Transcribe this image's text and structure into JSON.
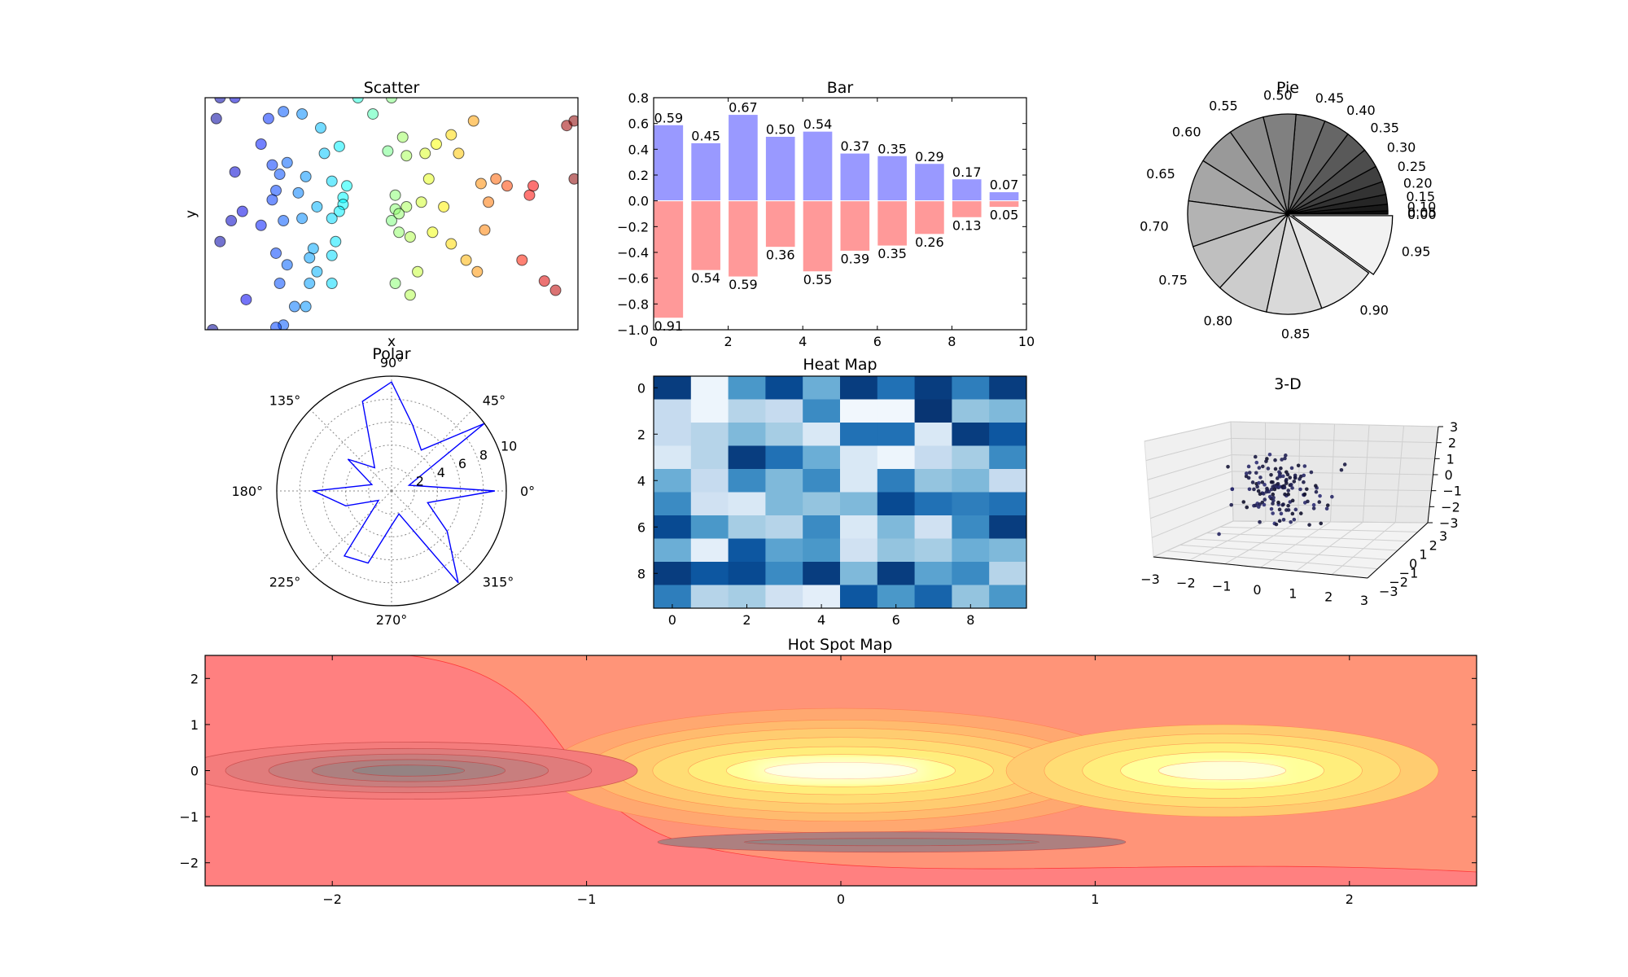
{
  "chart_data": [
    {
      "type": "scatter",
      "title": "Scatter",
      "xlabel": "x",
      "ylabel": "y",
      "xlim": [
        0,
        1
      ],
      "ylim": [
        0,
        1
      ],
      "colormap": "jet",
      "points": [
        [
          0.04,
          1.0
        ],
        [
          0.08,
          1.0
        ],
        [
          0.21,
          0.94
        ],
        [
          0.26,
          0.93
        ],
        [
          0.03,
          0.91
        ],
        [
          0.31,
          0.87
        ],
        [
          0.36,
          0.79
        ],
        [
          0.17,
          0.91
        ],
        [
          0.15,
          0.8
        ],
        [
          0.08,
          0.68
        ],
        [
          0.18,
          0.71
        ],
        [
          0.22,
          0.72
        ],
        [
          0.2,
          0.67
        ],
        [
          0.27,
          0.66
        ],
        [
          0.34,
          0.64
        ],
        [
          0.37,
          0.57
        ],
        [
          0.19,
          0.6
        ],
        [
          0.25,
          0.59
        ],
        [
          0.18,
          0.56
        ],
        [
          0.3,
          0.53
        ],
        [
          0.37,
          0.54
        ],
        [
          0.36,
          0.51
        ],
        [
          0.32,
          0.76
        ],
        [
          0.1,
          0.51
        ],
        [
          0.07,
          0.47
        ],
        [
          0.21,
          0.47
        ],
        [
          0.26,
          0.48
        ],
        [
          0.15,
          0.45
        ],
        [
          0.04,
          0.38
        ],
        [
          0.19,
          0.33
        ],
        [
          0.22,
          0.28
        ],
        [
          0.34,
          0.48
        ],
        [
          0.35,
          0.38
        ],
        [
          0.34,
          0.32
        ],
        [
          0.29,
          0.35
        ],
        [
          0.28,
          0.31
        ],
        [
          0.11,
          0.13
        ],
        [
          0.28,
          0.2
        ],
        [
          0.3,
          0.25
        ],
        [
          0.2,
          0.2
        ],
        [
          0.27,
          0.1
        ],
        [
          0.24,
          0.1
        ],
        [
          0.21,
          0.02
        ],
        [
          0.34,
          0.2
        ],
        [
          0.02,
          0.0
        ],
        [
          0.19,
          0.01
        ],
        [
          0.38,
          0.62
        ],
        [
          0.5,
          1.0
        ],
        [
          0.41,
          1.0
        ],
        [
          0.45,
          0.93
        ],
        [
          0.49,
          0.77
        ],
        [
          0.53,
          0.83
        ],
        [
          0.54,
          0.75
        ],
        [
          0.51,
          0.58
        ],
        [
          0.54,
          0.53
        ],
        [
          0.51,
          0.52
        ],
        [
          0.5,
          0.47
        ],
        [
          0.6,
          0.65
        ],
        [
          0.58,
          0.55
        ],
        [
          0.55,
          0.4
        ],
        [
          0.52,
          0.42
        ],
        [
          0.52,
          0.5
        ],
        [
          0.59,
          0.76
        ],
        [
          0.62,
          0.8
        ],
        [
          0.66,
          0.84
        ],
        [
          0.68,
          0.76
        ],
        [
          0.72,
          0.9
        ],
        [
          0.74,
          0.63
        ],
        [
          0.81,
          0.62
        ],
        [
          0.87,
          0.58
        ],
        [
          0.97,
          0.88
        ],
        [
          0.88,
          0.62
        ],
        [
          0.78,
          0.65
        ],
        [
          0.76,
          0.55
        ],
        [
          0.75,
          0.43
        ],
        [
          0.66,
          0.37
        ],
        [
          0.64,
          0.53
        ],
        [
          0.61,
          0.42
        ],
        [
          0.57,
          0.25
        ],
        [
          0.51,
          0.2
        ],
        [
          0.55,
          0.15
        ],
        [
          0.73,
          0.25
        ],
        [
          0.7,
          0.3
        ],
        [
          0.85,
          0.3
        ],
        [
          0.91,
          0.21
        ],
        [
          0.94,
          0.17
        ],
        [
          0.99,
          0.65
        ],
        [
          0.99,
          0.9
        ]
      ]
    },
    {
      "type": "bar",
      "title": "Bar",
      "xlim": [
        0,
        10
      ],
      "ylim": [
        -1.0,
        0.8
      ],
      "xticks": [
        "0",
        "2",
        "4",
        "6",
        "8",
        "10"
      ],
      "yticks": [
        "−1.0",
        "−0.8",
        "−0.6",
        "−0.4",
        "−0.2",
        "0.0",
        "0.2",
        "0.4",
        "0.6",
        "0.8"
      ],
      "categories": [
        0,
        1,
        2,
        3,
        4,
        5,
        6,
        7,
        8,
        9
      ],
      "series": [
        {
          "values": [
            0.59,
            0.45,
            0.67,
            0.5,
            0.54,
            0.37,
            0.35,
            0.29,
            0.17,
            0.07
          ],
          "labels": [
            "0.59",
            "0.45",
            "0.67",
            "0.50",
            "0.54",
            "0.37",
            "0.35",
            "0.29",
            "0.17",
            "0.07"
          ],
          "color": "#9999ff"
        },
        {
          "values": [
            -0.91,
            -0.54,
            -0.59,
            -0.36,
            -0.55,
            -0.39,
            -0.35,
            -0.26,
            -0.13,
            -0.05
          ],
          "labels": [
            "0.91",
            "0.54",
            "0.59",
            "0.36",
            "0.55",
            "0.39",
            "0.35",
            "0.26",
            "0.13",
            "0.05"
          ],
          "color": "#ff9999"
        }
      ]
    },
    {
      "type": "pie",
      "title": "Pie",
      "slices": [
        0.0,
        0.05,
        0.1,
        0.15,
        0.2,
        0.25,
        0.3,
        0.35,
        0.4,
        0.45,
        0.5,
        0.55,
        0.6,
        0.65,
        0.7,
        0.75,
        0.8,
        0.85,
        0.9,
        0.95
      ],
      "labels": [
        "0.00",
        "0.05",
        "0.10",
        "0.15",
        "0.20",
        "0.25",
        "0.30",
        "0.35",
        "0.40",
        "0.45",
        "0.50",
        "0.55",
        "0.60",
        "0.65",
        "0.70",
        "0.75",
        "0.80",
        "0.85",
        "0.90",
        "0.95"
      ],
      "colormap": "gray"
    },
    {
      "type": "line",
      "title": "Polar",
      "projection": "polar",
      "angle_ticks": [
        "0°",
        "45°",
        "90°",
        "135°",
        "180°",
        "225°",
        "270°",
        "315°"
      ],
      "radial_ticks": [
        "2",
        "4",
        "6",
        "8",
        "10"
      ],
      "rlim": [
        0,
        10
      ],
      "theta_deg": [
        0,
        18,
        36,
        54,
        72,
        90,
        108,
        126,
        144,
        162,
        180,
        198,
        216,
        234,
        252,
        270,
        288,
        306,
        324,
        342,
        360
      ],
      "r": [
        9.0,
        1.6,
        10.0,
        4.4,
        6.0,
        9.5,
        8.2,
        2.5,
        4.7,
        1.8,
        6.8,
        4.2,
        1.4,
        7.0,
        6.6,
        3.0,
        2.1,
        9.9,
        6.0,
        3.3,
        9.0
      ],
      "color": "#0000ff"
    },
    {
      "type": "heatmap",
      "title": "Heat Map",
      "xticks": [
        "0",
        "2",
        "4",
        "6",
        "8"
      ],
      "yticks": [
        "0",
        "2",
        "4",
        "6",
        "8"
      ],
      "colormap": "Blues",
      "values": [
        [
          0.95,
          0.05,
          0.6,
          0.9,
          0.5,
          0.95,
          0.75,
          0.95,
          0.7,
          0.95
        ],
        [
          0.25,
          0.05,
          0.3,
          0.25,
          0.65,
          0.03,
          0.03,
          0.98,
          0.4,
          0.45
        ],
        [
          0.25,
          0.3,
          0.45,
          0.35,
          0.15,
          0.75,
          0.75,
          0.15,
          0.95,
          0.85
        ],
        [
          0.15,
          0.3,
          0.95,
          0.75,
          0.5,
          0.15,
          0.05,
          0.25,
          0.35,
          0.65
        ],
        [
          0.5,
          0.25,
          0.65,
          0.45,
          0.65,
          0.15,
          0.7,
          0.4,
          0.45,
          0.25
        ],
        [
          0.65,
          0.2,
          0.15,
          0.45,
          0.4,
          0.45,
          0.9,
          0.75,
          0.7,
          0.75
        ],
        [
          0.9,
          0.6,
          0.35,
          0.3,
          0.65,
          0.15,
          0.45,
          0.2,
          0.65,
          0.95
        ],
        [
          0.5,
          0.1,
          0.85,
          0.55,
          0.6,
          0.2,
          0.4,
          0.35,
          0.5,
          0.45
        ],
        [
          0.95,
          0.85,
          0.9,
          0.65,
          0.95,
          0.45,
          0.95,
          0.55,
          0.65,
          0.3
        ],
        [
          0.7,
          0.3,
          0.35,
          0.2,
          0.1,
          0.85,
          0.6,
          0.8,
          0.4,
          0.6
        ]
      ]
    },
    {
      "type": "scatter",
      "title": "3-D",
      "projection": "3d",
      "xticks": [
        "−3",
        "−2",
        "−1",
        "0",
        "1",
        "2",
        "3"
      ],
      "yticks": [
        "−3",
        "−2",
        "−1",
        "0",
        "1",
        "2",
        "3"
      ],
      "zticks": [
        "−3",
        "−2",
        "−1",
        "0",
        "1",
        "2",
        "3"
      ],
      "xlim": [
        -3,
        3
      ],
      "ylim": [
        -3,
        3
      ],
      "zlim": [
        -3,
        3
      ],
      "color": "#1a1a4d",
      "point_count": 150
    },
    {
      "type": "heatmap",
      "title": "Hot Spot Map",
      "style": "filled-contour",
      "xlim": [
        -2.5,
        2.5
      ],
      "ylim": [
        -2.5,
        2.5
      ],
      "xticks": [
        "−2",
        "−1",
        "0",
        "1",
        "2"
      ],
      "yticks": [
        "−2",
        "−1",
        "0",
        "1",
        "2"
      ],
      "colormap": "hot",
      "hot_spots": [
        {
          "x": 0.0,
          "y": 0.0,
          "sign": "high"
        },
        {
          "x": 1.5,
          "y": 0.0,
          "sign": "high"
        },
        {
          "x": -1.7,
          "y": 0.0,
          "sign": "low"
        },
        {
          "x": 0.2,
          "y": -1.5,
          "sign": "low"
        }
      ]
    }
  ]
}
